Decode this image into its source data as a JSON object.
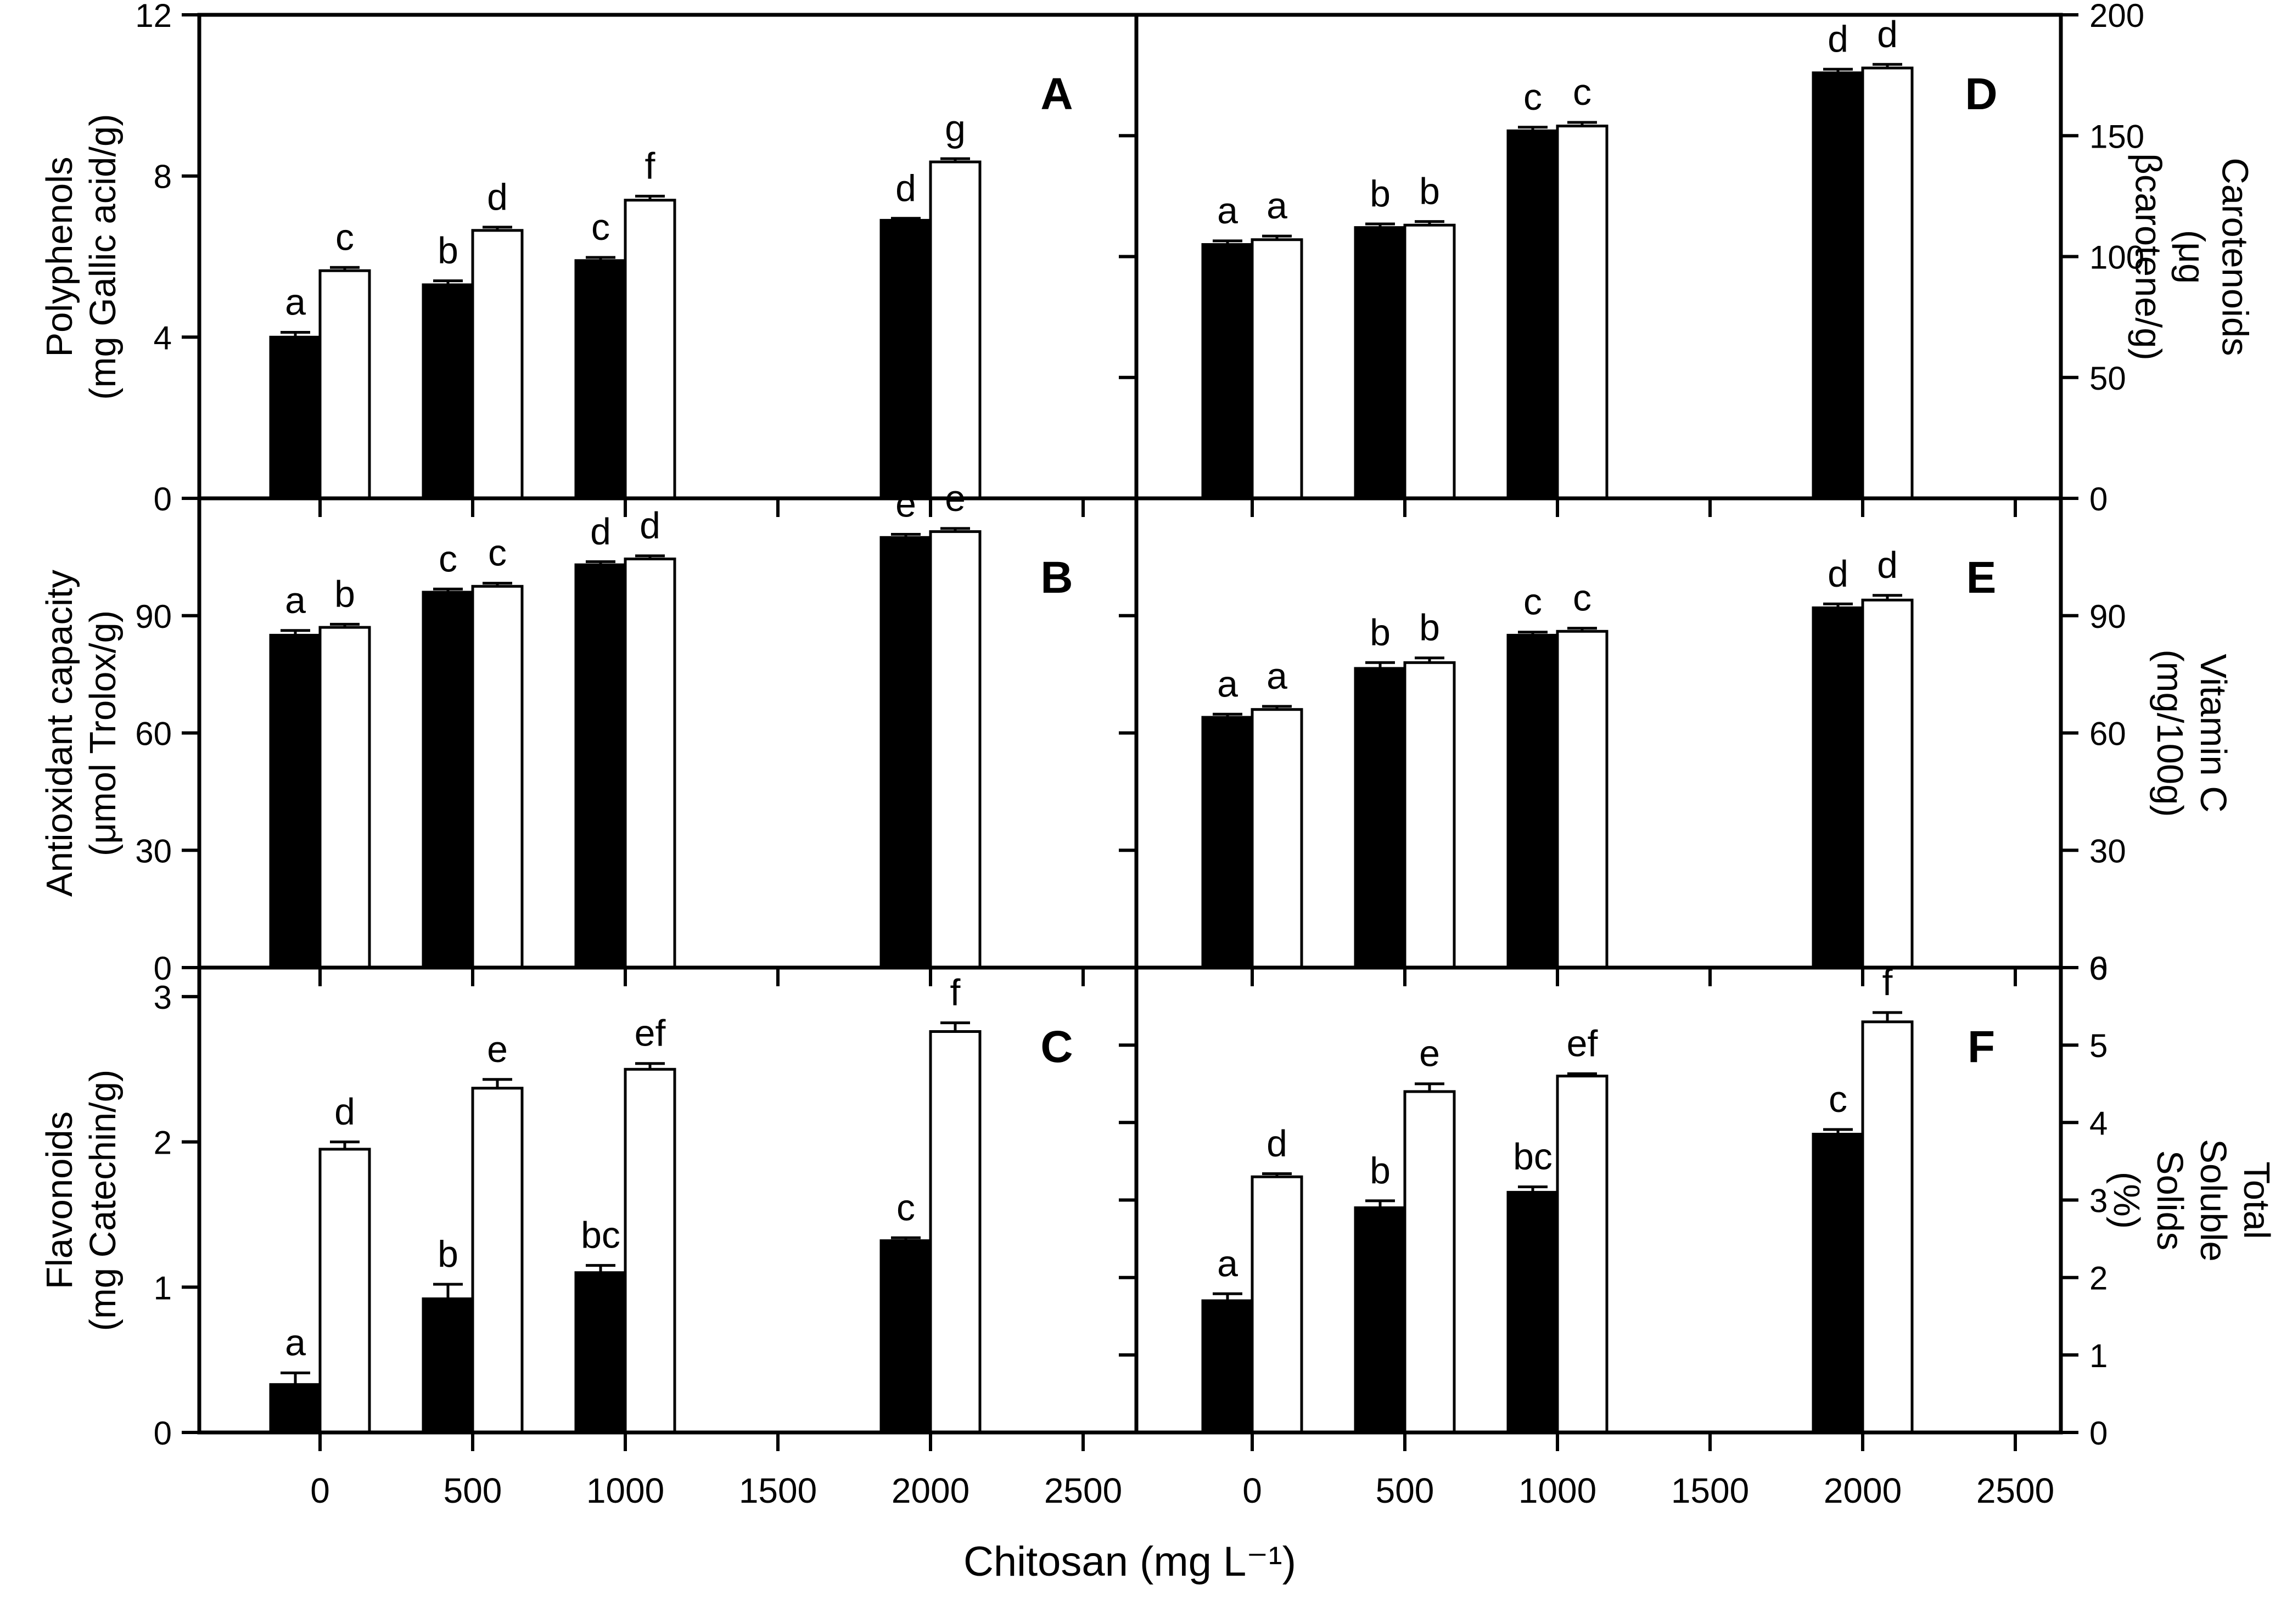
{
  "figure": {
    "xlabel": "Chitosan (mg L⁻¹)",
    "x_ticks": [
      0,
      500,
      1000,
      1500,
      2000,
      2500
    ],
    "bar_colors": {
      "filled": "#000000",
      "open": "#ffffff"
    },
    "panels_order": [
      "A",
      "B",
      "C",
      "D",
      "E",
      "F"
    ]
  },
  "chart_data": [
    {
      "type": "bar",
      "id": "A",
      "ylabel": "Polyphenols\n(mg Gallic acid/g)",
      "axis_side": "left",
      "ylim": [
        0,
        12
      ],
      "yticks": [
        0,
        4,
        8,
        12
      ],
      "categories": [
        0,
        500,
        1000,
        2000
      ],
      "series": [
        {
          "name": "filled",
          "values": [
            4.0,
            5.3,
            5.9,
            6.9
          ],
          "errors": [
            0.12,
            0.1,
            0.08,
            0.05
          ],
          "letters": [
            "a",
            "b",
            "c",
            "d"
          ]
        },
        {
          "name": "open",
          "values": [
            5.65,
            6.65,
            7.4,
            8.35
          ],
          "errors": [
            0.08,
            0.08,
            0.1,
            0.08
          ],
          "letters": [
            "c",
            "d",
            "f",
            "g"
          ]
        }
      ]
    },
    {
      "type": "bar",
      "id": "B",
      "ylabel": "Antioxidant capacity\n(μmol Trolox/g)",
      "axis_side": "left",
      "ylim": [
        0,
        120
      ],
      "yticks": [
        0,
        30,
        60,
        90
      ],
      "categories": [
        0,
        500,
        1000,
        2000
      ],
      "series": [
        {
          "name": "filled",
          "values": [
            85,
            96,
            103,
            110
          ],
          "errors": [
            1.2,
            0.8,
            0.8,
            0.8
          ],
          "letters": [
            "a",
            "c",
            "d",
            "e"
          ]
        },
        {
          "name": "open",
          "values": [
            87,
            97.5,
            104.5,
            111.5
          ],
          "errors": [
            0.8,
            0.8,
            0.8,
            0.8
          ],
          "letters": [
            "b",
            "c",
            "d",
            "e"
          ]
        }
      ]
    },
    {
      "type": "bar",
      "id": "C",
      "ylabel": "Flavonoids\n(mg Catechin/g)",
      "axis_side": "left",
      "ylim": [
        0,
        3.2
      ],
      "yticks": [
        0,
        1,
        2,
        3
      ],
      "categories": [
        0,
        500,
        1000,
        2000
      ],
      "series": [
        {
          "name": "filled",
          "values": [
            0.33,
            0.92,
            1.1,
            1.32
          ],
          "errors": [
            0.08,
            0.1,
            0.05,
            0.02
          ],
          "letters": [
            "a",
            "b",
            "bc",
            "c"
          ]
        },
        {
          "name": "open",
          "values": [
            1.95,
            2.37,
            2.5,
            2.76
          ],
          "errors": [
            0.05,
            0.06,
            0.04,
            0.06
          ],
          "letters": [
            "d",
            "e",
            "ef",
            "f"
          ]
        }
      ]
    },
    {
      "type": "bar",
      "id": "D",
      "ylabel": "Carotenoids\n(μg βcarotene/g)",
      "axis_side": "right",
      "ylim": [
        0,
        200
      ],
      "yticks": [
        0,
        50,
        100,
        150,
        200
      ],
      "categories": [
        0,
        500,
        1000,
        2000
      ],
      "series": [
        {
          "name": "filled",
          "values": [
            105,
            112,
            152,
            176
          ],
          "errors": [
            1.5,
            1.5,
            1.5,
            1.5
          ],
          "letters": [
            "a",
            "b",
            "c",
            "d"
          ]
        },
        {
          "name": "open",
          "values": [
            107,
            113,
            154,
            178
          ],
          "errors": [
            1.5,
            1.5,
            1.5,
            1.5
          ],
          "letters": [
            "a",
            "b",
            "c",
            "d"
          ]
        }
      ]
    },
    {
      "type": "bar",
      "id": "E",
      "ylabel": "Vitamin C\n(mg/100g)",
      "axis_side": "right",
      "ylim": [
        0,
        120
      ],
      "yticks": [
        0,
        30,
        60,
        90
      ],
      "categories": [
        0,
        500,
        1000,
        2000
      ],
      "series": [
        {
          "name": "filled",
          "values": [
            64,
            76.5,
            85,
            92
          ],
          "errors": [
            0.8,
            1.5,
            0.8,
            1.0
          ],
          "letters": [
            "a",
            "b",
            "c",
            "d"
          ]
        },
        {
          "name": "open",
          "values": [
            66,
            78,
            86,
            94
          ],
          "errors": [
            0.8,
            1.2,
            0.8,
            1.2
          ],
          "letters": [
            "a",
            "b",
            "c",
            "d"
          ]
        }
      ]
    },
    {
      "type": "bar",
      "id": "F",
      "ylabel": "Total Soluble Solids\n(%)",
      "axis_side": "right",
      "ylim": [
        0,
        6
      ],
      "yticks": [
        0,
        1,
        2,
        3,
        4,
        5,
        6
      ],
      "categories": [
        0,
        500,
        1000,
        2000
      ],
      "series": [
        {
          "name": "filled",
          "values": [
            1.7,
            2.9,
            3.1,
            3.85
          ],
          "errors": [
            0.09,
            0.09,
            0.07,
            0.06
          ],
          "letters": [
            "a",
            "b",
            "bc",
            "c"
          ]
        },
        {
          "name": "open",
          "values": [
            3.3,
            4.4,
            4.6,
            5.3
          ],
          "errors": [
            0.04,
            0.1,
            0.03,
            0.12
          ],
          "letters": [
            "d",
            "e",
            "ef",
            "f"
          ]
        }
      ]
    }
  ]
}
